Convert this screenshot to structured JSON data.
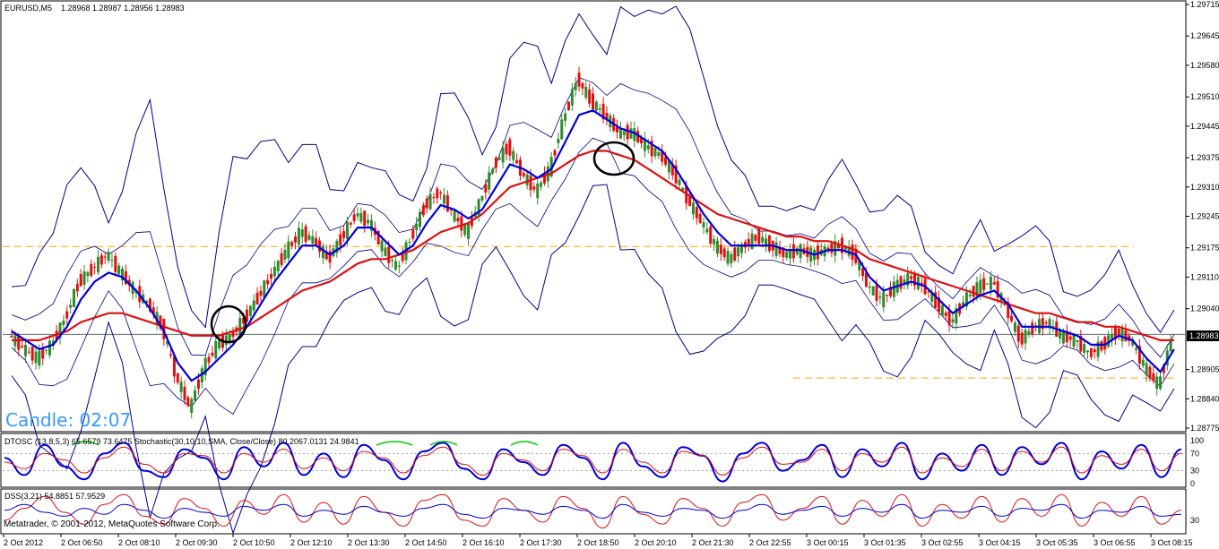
{
  "header": {
    "symbol": "EURUSD,M5",
    "ohlc": "1.28968 1.28987 1.28956 1.28983"
  },
  "candle_timer": "Candle:  02:07",
  "current_price_label": "1.28983",
  "indicators": {
    "dtosc": "DTOSC (13,8,5,3) 65.6579 73.6475  Stochastic(30,10,10,SMA, Close/Close) 80.2067.0131 24.9841",
    "dss": "DSS(3,21) 54.8851 57.9529"
  },
  "copyright": "Metatrader, © 2001-2012, MetaQuotes Software Corp.",
  "colors": {
    "bull": "#2e8b2e",
    "bear": "#e01010",
    "fast_ma": "#0000dd",
    "slow_ma": "#dd1111",
    "bands": "#000088",
    "level_lines": "#ffa500",
    "circles": "#000000",
    "stoch": "#00cc00"
  },
  "chart_data": [
    {
      "type": "candlestick",
      "ylim": [
        1.28775,
        1.29715
      ],
      "y_ticks": [
        "1.29715",
        "1.29645",
        "1.29580",
        "1.29510",
        "1.29445",
        "1.29375",
        "1.29310",
        "1.29245",
        "1.29175",
        "1.29110",
        "1.29040",
        "1.28905",
        "1.28840",
        "1.28775"
      ],
      "x_ticks": [
        "2 Oct 2012",
        "2 Oct 06:50",
        "2 Oct 08:10",
        "2 Oct 09:30",
        "2 Oct 10:50",
        "2 Oct 12:10",
        "2 Oct 13:30",
        "2 Oct 14:50",
        "2 Oct 16:10",
        "2 Oct 17:30",
        "2 Oct 18:50",
        "2 Oct 20:10",
        "2 Oct 21:30",
        "2 Oct 22:55",
        "3 Oct 00:15",
        "3 Oct 01:35",
        "3 Oct 02:55",
        "3 Oct 04:15",
        "3 Oct 05:35",
        "3 Oct 06:55",
        "3 Oct 08:15"
      ],
      "series": [
        {
          "name": "Price",
          "values": [
            1.2898,
            1.2895,
            1.2893,
            1.2896,
            1.2902,
            1.291,
            1.2913,
            1.2916,
            1.2912,
            1.2908,
            1.2905,
            1.29,
            1.2889,
            1.2882,
            1.2891,
            1.2896,
            1.2898,
            1.2902,
            1.2907,
            1.2912,
            1.2917,
            1.2921,
            1.2919,
            1.2915,
            1.292,
            1.2925,
            1.2923,
            1.2917,
            1.2913,
            1.292,
            1.2927,
            1.293,
            1.2925,
            1.2921,
            1.2928,
            1.2936,
            1.294,
            1.2934,
            1.293,
            1.2935,
            1.2946,
            1.2955,
            1.295,
            1.2947,
            1.2943,
            1.2943,
            1.294,
            1.2938,
            1.2934,
            1.2928,
            1.2923,
            1.2918,
            1.2915,
            1.2918,
            1.292,
            1.2918,
            1.2916,
            1.2917,
            1.2916,
            1.2917,
            1.2918,
            1.2916,
            1.2909,
            1.2906,
            1.2909,
            1.2911,
            1.2909,
            1.2905,
            1.2901,
            1.2906,
            1.2909,
            1.291,
            1.2904,
            1.2897,
            1.29,
            1.2901,
            1.2898,
            1.2897,
            1.2894,
            1.2896,
            1.2899,
            1.2897,
            1.2891,
            1.2887,
            1.2898
          ]
        },
        {
          "name": "Fast MA",
          "values": [
            1.2899,
            1.2897,
            1.2895,
            1.2896,
            1.29,
            1.2906,
            1.291,
            1.2912,
            1.2911,
            1.2908,
            1.2904,
            1.2899,
            1.2892,
            1.2888,
            1.289,
            1.2893,
            1.2896,
            1.29,
            1.2905,
            1.291,
            1.2914,
            1.2918,
            1.2918,
            1.2916,
            1.2918,
            1.2922,
            1.2922,
            1.2919,
            1.2916,
            1.2918,
            1.2923,
            1.2927,
            1.2926,
            1.2924,
            1.2926,
            1.2931,
            1.2936,
            1.2935,
            1.2933,
            1.2935,
            1.2941,
            1.2947,
            1.2948,
            1.2946,
            1.2944,
            1.2943,
            1.2941,
            1.2939,
            1.2935,
            1.293,
            1.2925,
            1.2921,
            1.2918,
            1.2918,
            1.2918,
            1.2918,
            1.2917,
            1.2917,
            1.2916,
            1.2917,
            1.2917,
            1.2916,
            1.2911,
            1.2908,
            1.2909,
            1.291,
            1.2909,
            1.2906,
            1.2903,
            1.2905,
            1.2907,
            1.2908,
            1.2905,
            1.29,
            1.29,
            1.29,
            1.2899,
            1.2898,
            1.2896,
            1.2896,
            1.2898,
            1.2897,
            1.2893,
            1.289,
            1.2895
          ]
        },
        {
          "name": "Slow MA",
          "values": [
            1.2897,
            1.2897,
            1.2897,
            1.2898,
            1.2899,
            1.2901,
            1.2902,
            1.2903,
            1.2903,
            1.2902,
            1.2901,
            1.29,
            1.2899,
            1.2898,
            1.2898,
            1.2898,
            1.2899,
            1.29,
            1.2902,
            1.2904,
            1.2906,
            1.2908,
            1.2909,
            1.291,
            1.2912,
            1.2914,
            1.2915,
            1.2915,
            1.2916,
            1.2917,
            1.2919,
            1.2921,
            1.2922,
            1.2923,
            1.2925,
            1.2928,
            1.2931,
            1.2932,
            1.2933,
            1.2934,
            1.2936,
            1.2938,
            1.2939,
            1.2939,
            1.2938,
            1.2937,
            1.2935,
            1.2933,
            1.2931,
            1.2929,
            1.2927,
            1.2925,
            1.2924,
            1.2923,
            1.2922,
            1.2921,
            1.292,
            1.292,
            1.2919,
            1.2919,
            1.2918,
            1.2917,
            1.2915,
            1.2914,
            1.2913,
            1.2912,
            1.2911,
            1.291,
            1.2909,
            1.2908,
            1.2907,
            1.2906,
            1.2905,
            1.2904,
            1.2903,
            1.2903,
            1.2902,
            1.2901,
            1.2901,
            1.29,
            1.29,
            1.2899,
            1.2898,
            1.2897,
            1.2897
          ]
        }
      ],
      "levels": [
        1.29178,
        1.28886
      ],
      "current_price": 1.28983
    },
    {
      "type": "line",
      "name": "DTOSC",
      "ylim": [
        0,
        100
      ],
      "y_ticks": [
        "100",
        "70",
        "30",
        "0"
      ],
      "series": [
        {
          "name": "DTOSC main",
          "values": [
            60,
            20,
            90,
            40,
            10,
            70,
            95,
            30,
            15,
            80,
            60,
            10,
            85,
            40,
            95,
            20,
            70,
            15,
            90,
            55,
            10,
            75,
            95,
            35,
            10,
            80,
            50,
            20,
            90,
            60,
            10,
            95,
            40,
            15,
            85,
            65,
            5,
            70,
            95,
            30,
            55,
            90,
            15,
            80,
            40,
            95,
            10,
            70,
            30,
            90,
            20,
            85,
            45,
            95,
            10,
            75,
            35,
            90,
            15,
            80
          ]
        },
        {
          "name": "DTOSC signal",
          "values": [
            50,
            35,
            70,
            55,
            25,
            60,
            85,
            45,
            25,
            70,
            65,
            25,
            70,
            50,
            80,
            35,
            60,
            30,
            75,
            60,
            25,
            65,
            85,
            45,
            20,
            70,
            55,
            30,
            80,
            65,
            25,
            80,
            50,
            25,
            75,
            65,
            20,
            60,
            85,
            45,
            50,
            80,
            30,
            70,
            50,
            85,
            25,
            60,
            40,
            80,
            30,
            75,
            50,
            85,
            25,
            65,
            45,
            80,
            30,
            70
          ]
        }
      ]
    },
    {
      "type": "line",
      "name": "DSS",
      "ylim": [
        0,
        100
      ],
      "y_ticks": [
        "30"
      ],
      "series": [
        {
          "name": "DSS 1",
          "values": [
            30,
            60,
            90,
            50,
            20,
            70,
            95,
            40,
            20,
            85,
            60,
            15,
            80,
            45,
            95,
            25,
            75,
            20,
            90,
            50,
            15,
            80,
            95,
            30,
            15,
            85,
            55,
            25,
            90,
            60,
            10,
            90,
            45,
            20,
            85,
            60,
            15,
            75,
            95,
            30,
            60,
            90,
            20,
            80,
            40,
            95,
            15,
            70,
            35,
            90,
            25,
            85,
            40,
            95,
            15,
            75,
            40,
            90,
            20,
            55
          ]
        },
        {
          "name": "DSS 2",
          "values": [
            55,
            70,
            50,
            40,
            60,
            45,
            70,
            55,
            35,
            60,
            50,
            40,
            65,
            55,
            70,
            40,
            55,
            45,
            65,
            50,
            40,
            60,
            70,
            45,
            35,
            60,
            55,
            45,
            65,
            55,
            35,
            70,
            50,
            40,
            60,
            55,
            35,
            55,
            70,
            45,
            55,
            65,
            40,
            60,
            50,
            70,
            35,
            55,
            50,
            65,
            40,
            60,
            55,
            70,
            35,
            55,
            50,
            65,
            40,
            45
          ]
        }
      ]
    }
  ]
}
